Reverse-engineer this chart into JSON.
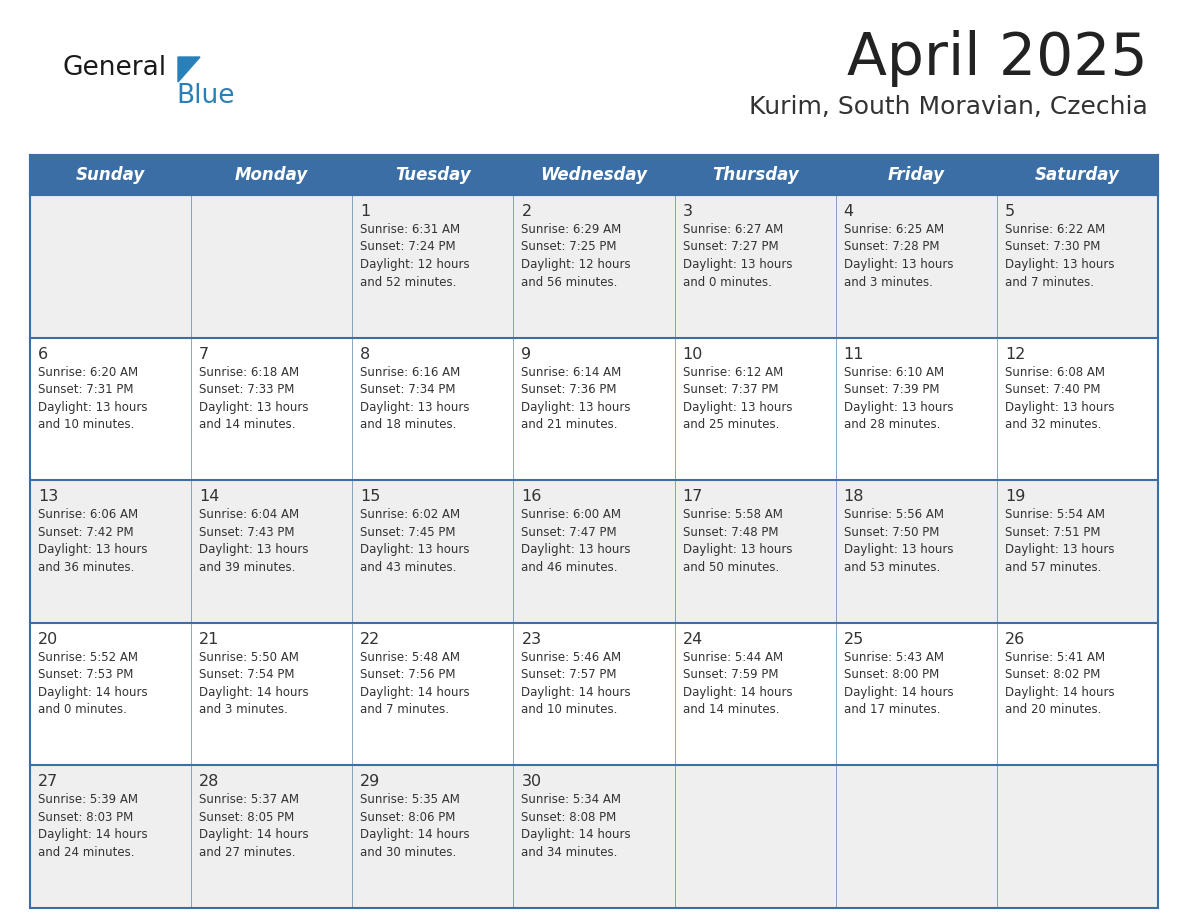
{
  "title": "April 2025",
  "subtitle": "Kurim, South Moravian, Czechia",
  "header_bg_color": "#3b6ea5",
  "header_text_color": "#ffffff",
  "cell_bg_even": "#efefef",
  "cell_bg_odd": "#ffffff",
  "day_headers": [
    "Sunday",
    "Monday",
    "Tuesday",
    "Wednesday",
    "Thursday",
    "Friday",
    "Saturday"
  ],
  "title_color": "#222222",
  "subtitle_color": "#333333",
  "text_color": "#333333",
  "border_color": "#3b6ea5",
  "logo_text_color": "#1a1a1a",
  "logo_blue_color": "#2980b9",
  "logo_triangle_color": "#2980b9",
  "calendar_data": [
    [
      {
        "day": "",
        "info": ""
      },
      {
        "day": "",
        "info": ""
      },
      {
        "day": "1",
        "info": "Sunrise: 6:31 AM\nSunset: 7:24 PM\nDaylight: 12 hours\nand 52 minutes."
      },
      {
        "day": "2",
        "info": "Sunrise: 6:29 AM\nSunset: 7:25 PM\nDaylight: 12 hours\nand 56 minutes."
      },
      {
        "day": "3",
        "info": "Sunrise: 6:27 AM\nSunset: 7:27 PM\nDaylight: 13 hours\nand 0 minutes."
      },
      {
        "day": "4",
        "info": "Sunrise: 6:25 AM\nSunset: 7:28 PM\nDaylight: 13 hours\nand 3 minutes."
      },
      {
        "day": "5",
        "info": "Sunrise: 6:22 AM\nSunset: 7:30 PM\nDaylight: 13 hours\nand 7 minutes."
      }
    ],
    [
      {
        "day": "6",
        "info": "Sunrise: 6:20 AM\nSunset: 7:31 PM\nDaylight: 13 hours\nand 10 minutes."
      },
      {
        "day": "7",
        "info": "Sunrise: 6:18 AM\nSunset: 7:33 PM\nDaylight: 13 hours\nand 14 minutes."
      },
      {
        "day": "8",
        "info": "Sunrise: 6:16 AM\nSunset: 7:34 PM\nDaylight: 13 hours\nand 18 minutes."
      },
      {
        "day": "9",
        "info": "Sunrise: 6:14 AM\nSunset: 7:36 PM\nDaylight: 13 hours\nand 21 minutes."
      },
      {
        "day": "10",
        "info": "Sunrise: 6:12 AM\nSunset: 7:37 PM\nDaylight: 13 hours\nand 25 minutes."
      },
      {
        "day": "11",
        "info": "Sunrise: 6:10 AM\nSunset: 7:39 PM\nDaylight: 13 hours\nand 28 minutes."
      },
      {
        "day": "12",
        "info": "Sunrise: 6:08 AM\nSunset: 7:40 PM\nDaylight: 13 hours\nand 32 minutes."
      }
    ],
    [
      {
        "day": "13",
        "info": "Sunrise: 6:06 AM\nSunset: 7:42 PM\nDaylight: 13 hours\nand 36 minutes."
      },
      {
        "day": "14",
        "info": "Sunrise: 6:04 AM\nSunset: 7:43 PM\nDaylight: 13 hours\nand 39 minutes."
      },
      {
        "day": "15",
        "info": "Sunrise: 6:02 AM\nSunset: 7:45 PM\nDaylight: 13 hours\nand 43 minutes."
      },
      {
        "day": "16",
        "info": "Sunrise: 6:00 AM\nSunset: 7:47 PM\nDaylight: 13 hours\nand 46 minutes."
      },
      {
        "day": "17",
        "info": "Sunrise: 5:58 AM\nSunset: 7:48 PM\nDaylight: 13 hours\nand 50 minutes."
      },
      {
        "day": "18",
        "info": "Sunrise: 5:56 AM\nSunset: 7:50 PM\nDaylight: 13 hours\nand 53 minutes."
      },
      {
        "day": "19",
        "info": "Sunrise: 5:54 AM\nSunset: 7:51 PM\nDaylight: 13 hours\nand 57 minutes."
      }
    ],
    [
      {
        "day": "20",
        "info": "Sunrise: 5:52 AM\nSunset: 7:53 PM\nDaylight: 14 hours\nand 0 minutes."
      },
      {
        "day": "21",
        "info": "Sunrise: 5:50 AM\nSunset: 7:54 PM\nDaylight: 14 hours\nand 3 minutes."
      },
      {
        "day": "22",
        "info": "Sunrise: 5:48 AM\nSunset: 7:56 PM\nDaylight: 14 hours\nand 7 minutes."
      },
      {
        "day": "23",
        "info": "Sunrise: 5:46 AM\nSunset: 7:57 PM\nDaylight: 14 hours\nand 10 minutes."
      },
      {
        "day": "24",
        "info": "Sunrise: 5:44 AM\nSunset: 7:59 PM\nDaylight: 14 hours\nand 14 minutes."
      },
      {
        "day": "25",
        "info": "Sunrise: 5:43 AM\nSunset: 8:00 PM\nDaylight: 14 hours\nand 17 minutes."
      },
      {
        "day": "26",
        "info": "Sunrise: 5:41 AM\nSunset: 8:02 PM\nDaylight: 14 hours\nand 20 minutes."
      }
    ],
    [
      {
        "day": "27",
        "info": "Sunrise: 5:39 AM\nSunset: 8:03 PM\nDaylight: 14 hours\nand 24 minutes."
      },
      {
        "day": "28",
        "info": "Sunrise: 5:37 AM\nSunset: 8:05 PM\nDaylight: 14 hours\nand 27 minutes."
      },
      {
        "day": "29",
        "info": "Sunrise: 5:35 AM\nSunset: 8:06 PM\nDaylight: 14 hours\nand 30 minutes."
      },
      {
        "day": "30",
        "info": "Sunrise: 5:34 AM\nSunset: 8:08 PM\nDaylight: 14 hours\nand 34 minutes."
      },
      {
        "day": "",
        "info": ""
      },
      {
        "day": "",
        "info": ""
      },
      {
        "day": "",
        "info": ""
      }
    ]
  ]
}
